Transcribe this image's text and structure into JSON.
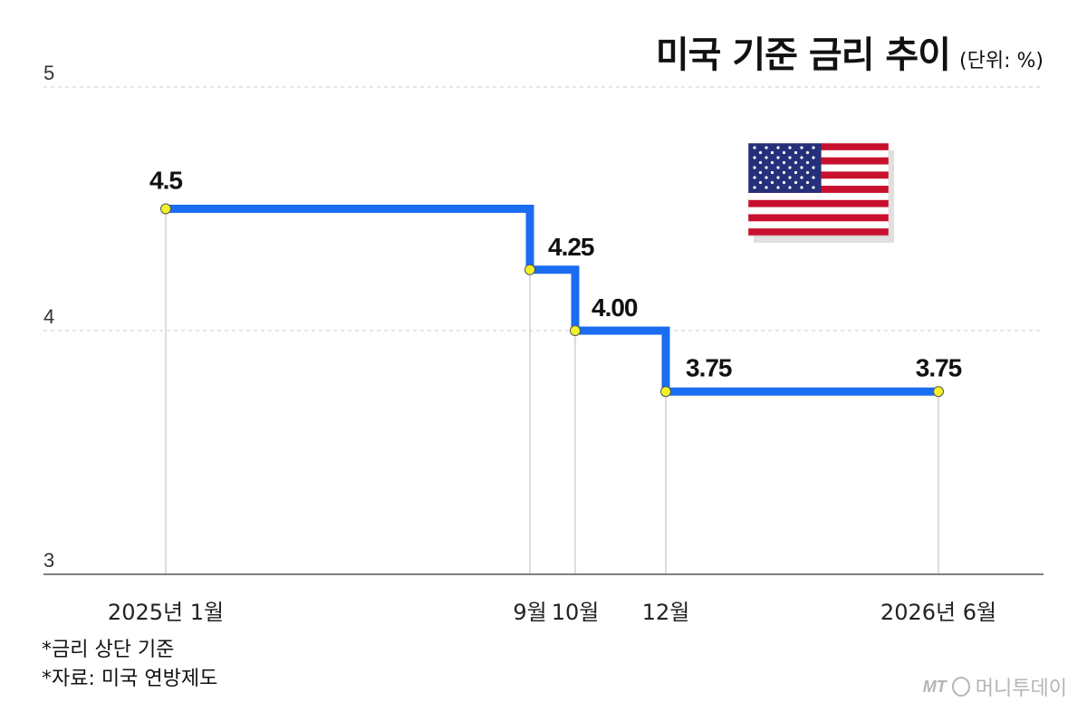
{
  "header": {
    "title": "미국 기준 금리 추이",
    "unit": "(단위: %)"
  },
  "notes": {
    "line1": "*금리 상단 기준",
    "line2": "*자료: 미국 연방제도"
  },
  "logo": {
    "mark": "MT",
    "text": "머니투데이"
  },
  "colors": {
    "line": "#1a6cf0",
    "marker": "#f2f22a",
    "grid": "#cccccc"
  },
  "chart_data": {
    "type": "line",
    "step": true,
    "ylim": [
      3,
      5
    ],
    "yticks": [
      "5",
      "4",
      "3"
    ],
    "x_labels": [
      "2025년 1월",
      "9월",
      "10월",
      "12월",
      "2026년 6월"
    ],
    "points": [
      {
        "x": "2025년 1월",
        "y": 4.5,
        "label": "4.5"
      },
      {
        "x": "9월",
        "y": 4.25,
        "label": "4.25"
      },
      {
        "x": "10월",
        "y": 4.0,
        "label": "4.00"
      },
      {
        "x": "12월",
        "y": 3.75,
        "label": "3.75"
      },
      {
        "x": "2026년 6월",
        "y": 3.75,
        "label": "3.75"
      }
    ],
    "gridlines": [
      5,
      4
    ],
    "flag_icon": "us-flag-icon"
  }
}
